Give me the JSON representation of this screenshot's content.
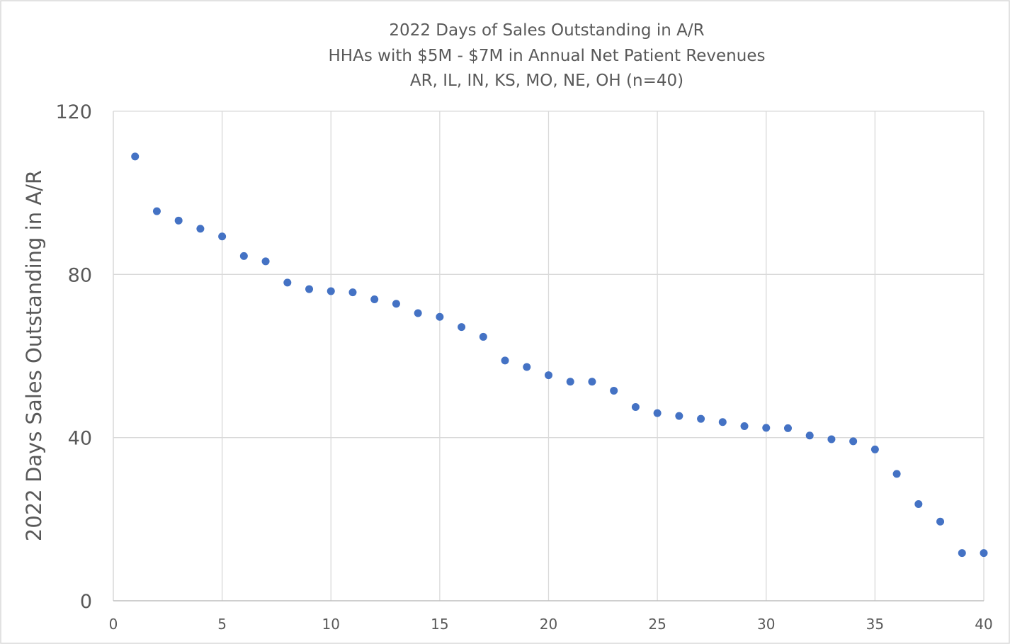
{
  "chart_data": {
    "type": "scatter",
    "title": [
      "2022 Days of Sales Outstanding in A/R",
      "HHAs with $5M - $7M in Annual Net Patient Revenues",
      "AR, IL, IN, KS, MO, NE, OH (n=40)"
    ],
    "xlabel": "",
    "ylabel": "2022 Days Sales Outstanding in A/R",
    "xlim": [
      0,
      40
    ],
    "ylim": [
      0,
      120
    ],
    "x_ticks": [
      0,
      5,
      10,
      15,
      20,
      25,
      30,
      35,
      40
    ],
    "y_ticks": [
      0,
      40,
      80,
      120
    ],
    "grid": true,
    "legend": "none",
    "marker_color": "#4472c4",
    "series": [
      {
        "x": [
          1,
          2,
          3,
          4,
          5,
          6,
          7,
          8,
          9,
          10,
          11,
          12,
          13,
          14,
          15,
          16,
          17,
          18,
          19,
          20,
          21,
          22,
          23,
          24,
          25,
          26,
          27,
          28,
          29,
          30,
          31,
          32,
          33,
          34,
          35,
          36,
          37,
          38,
          39,
          40
        ],
        "y": [
          108.9,
          95.5,
          93.2,
          91.2,
          89.3,
          84.5,
          83.2,
          78.0,
          76.4,
          75.9,
          75.6,
          73.9,
          72.8,
          70.5,
          69.6,
          67.1,
          64.7,
          58.9,
          57.3,
          55.3,
          53.7,
          53.7,
          51.5,
          47.5,
          46.0,
          45.3,
          44.6,
          43.8,
          42.8,
          42.4,
          42.3,
          40.5,
          39.6,
          39.1,
          37.1,
          31.1,
          23.7,
          19.4,
          11.7,
          11.7
        ]
      }
    ]
  }
}
